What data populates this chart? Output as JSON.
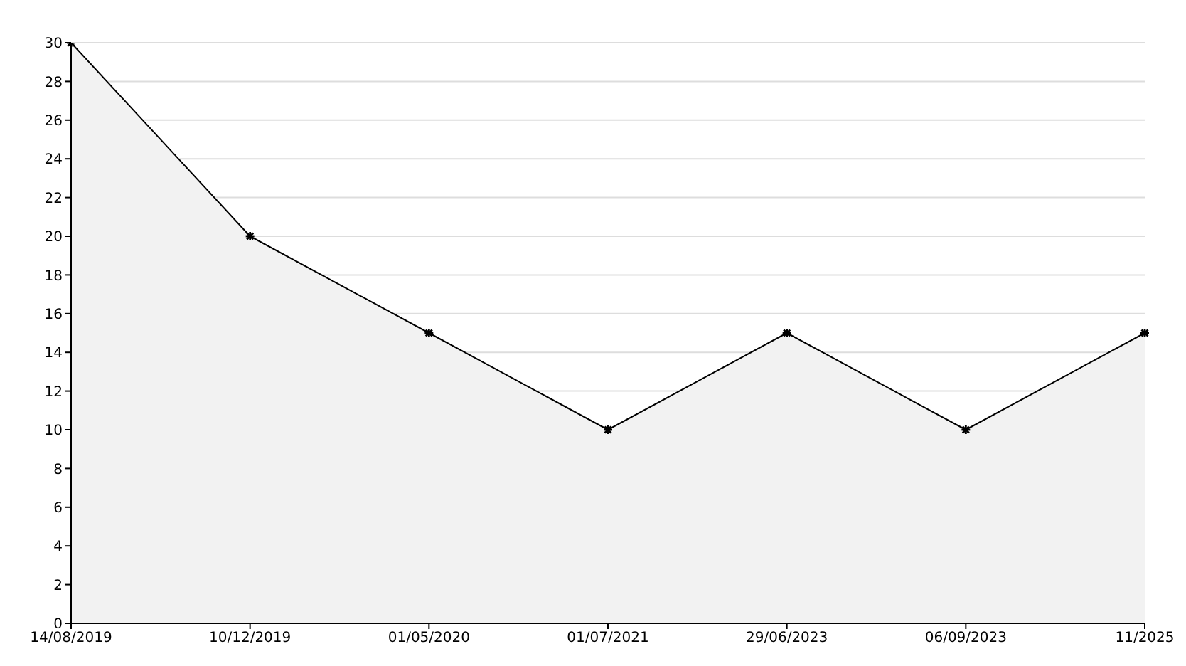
{
  "chart_data": {
    "type": "area",
    "categories": [
      "14/08/2019",
      "10/12/2019",
      "01/05/2020",
      "01/07/2021",
      "29/06/2023",
      "06/09/2023",
      "11/2025"
    ],
    "series": [
      {
        "color": "#000000",
        "values": [
          30,
          20,
          15,
          10,
          15,
          10,
          15
        ]
      }
    ],
    "ylim": [
      0,
      30
    ],
    "yticks": [
      0,
      2,
      4,
      6,
      8,
      10,
      12,
      14,
      16,
      18,
      20,
      22,
      24,
      26,
      28,
      30
    ],
    "grid": "y",
    "marker": "cross"
  }
}
